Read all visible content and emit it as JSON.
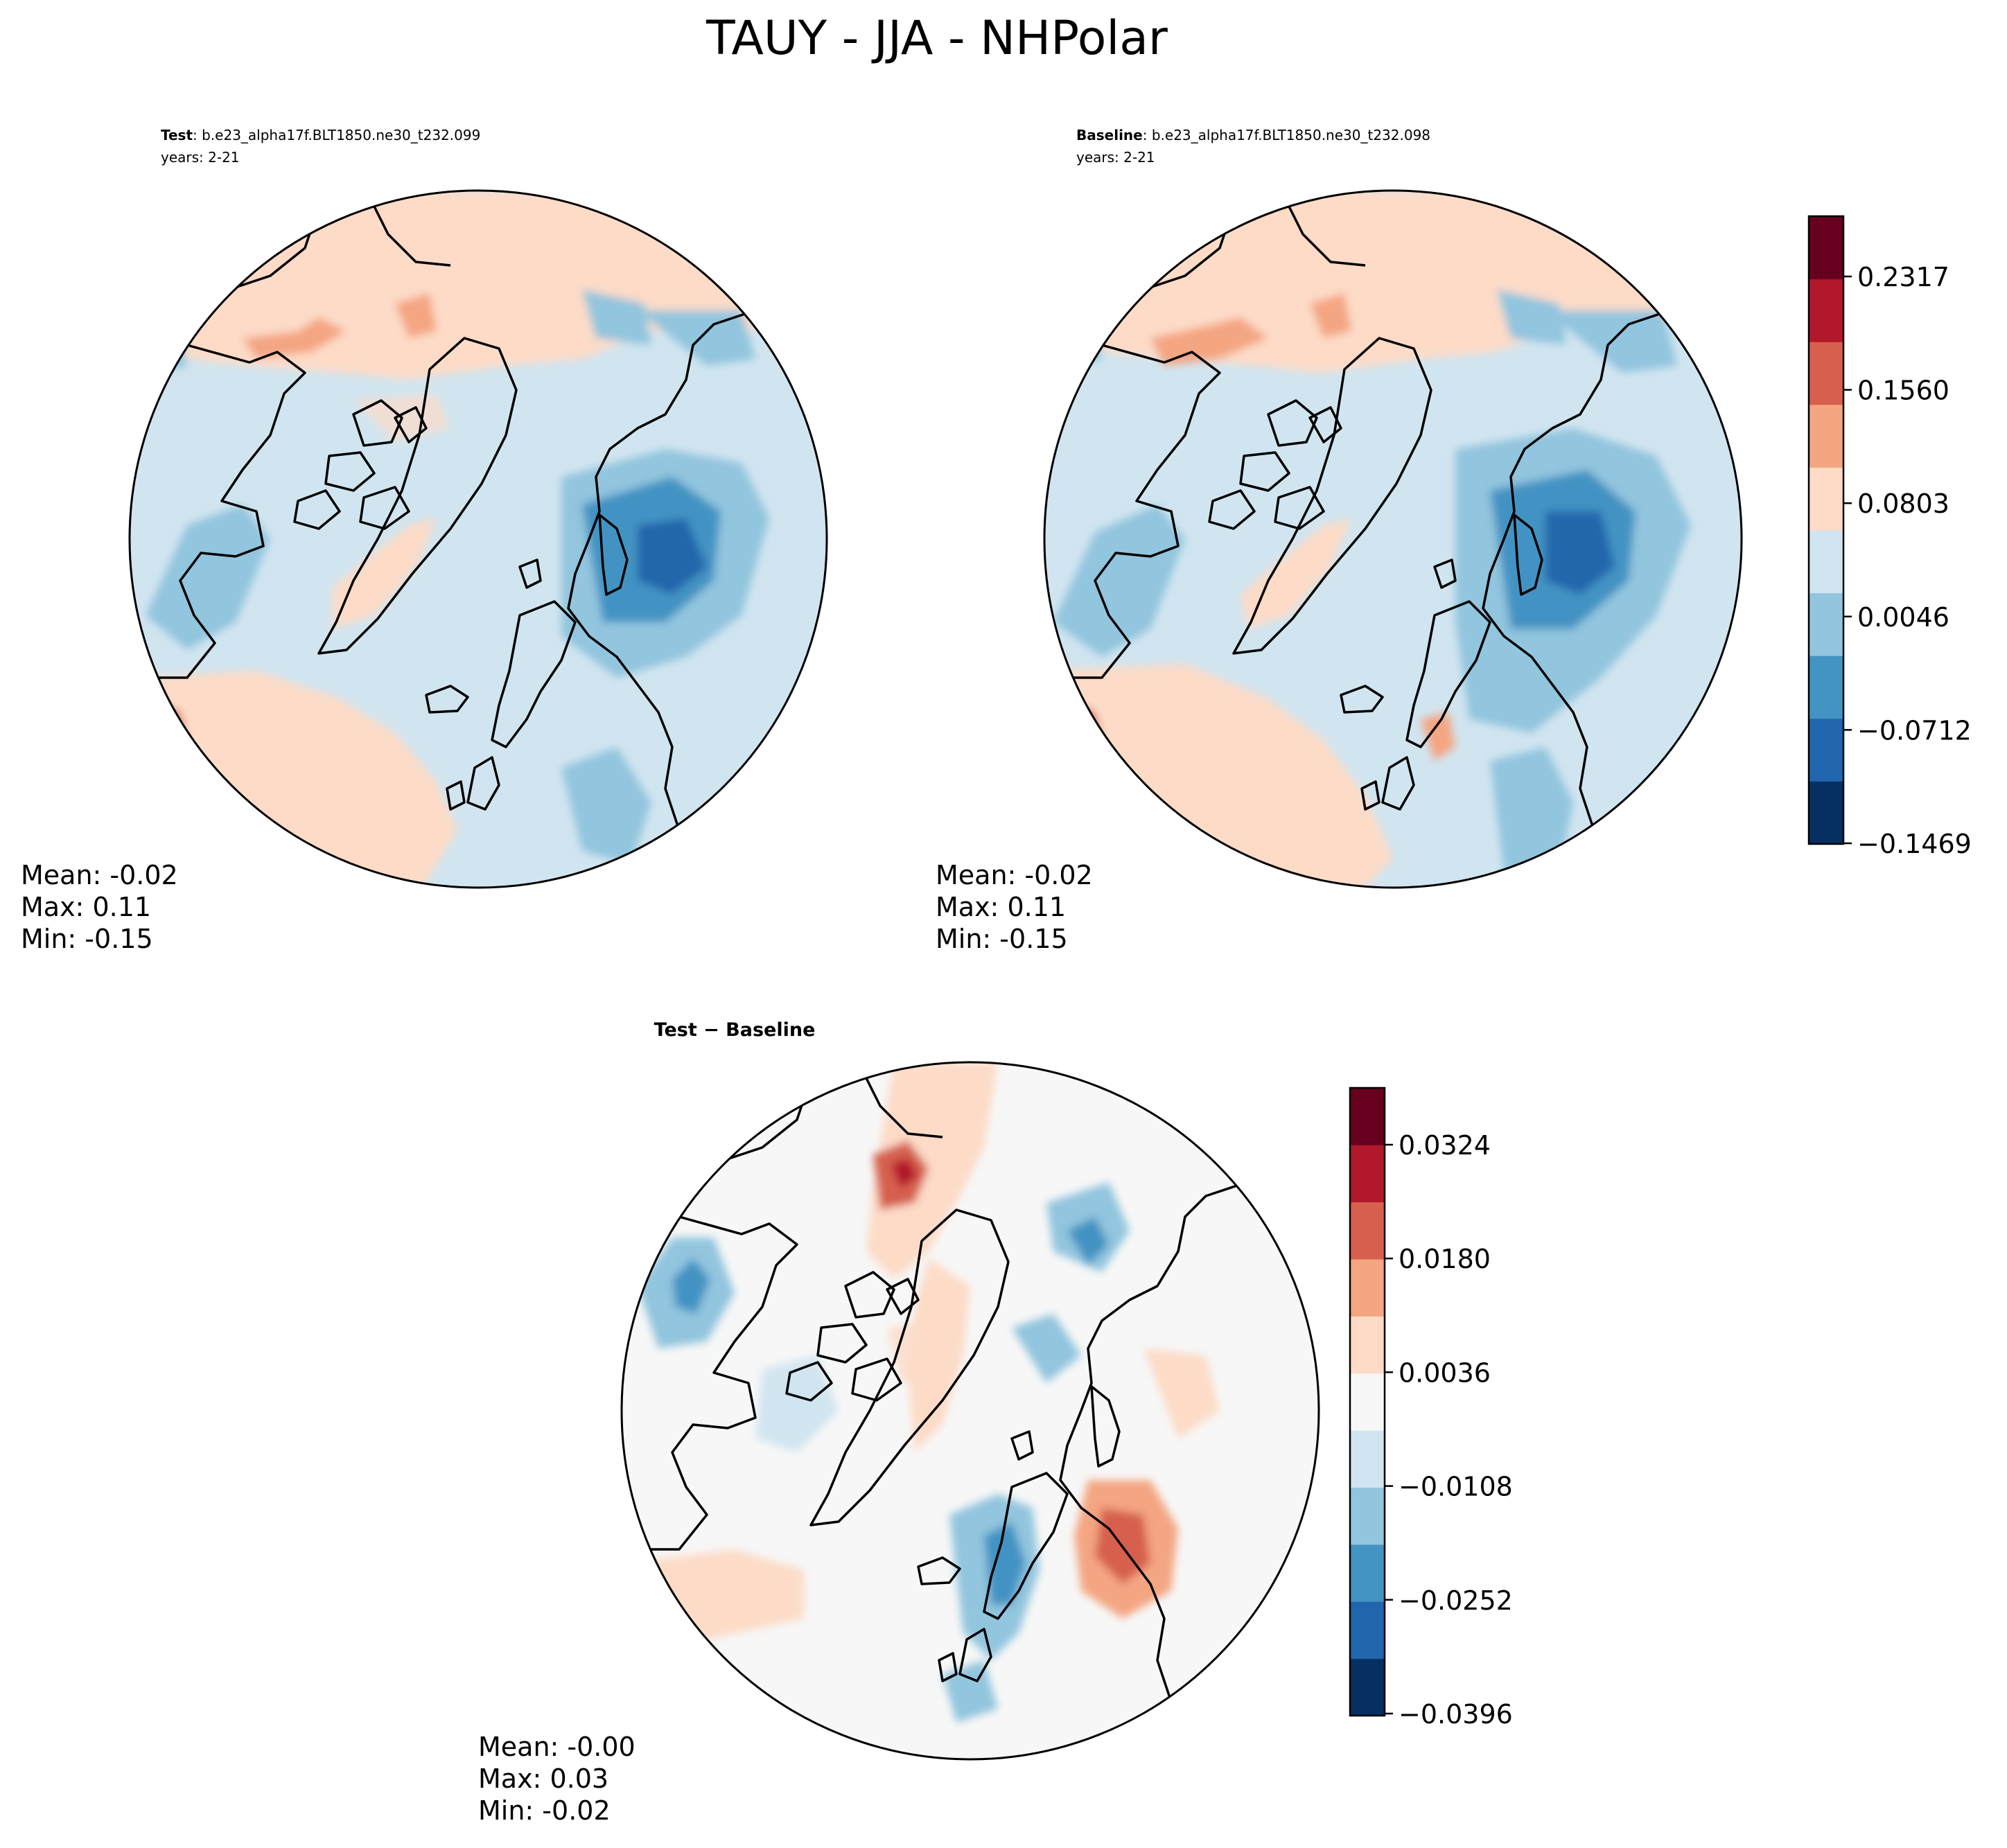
{
  "figure": {
    "title": "TAUY - JJA - NHPolar"
  },
  "chart_data": [
    {
      "type": "heatmap",
      "projection": "north-polar-stereographic",
      "panel": "test",
      "label_bold": "Test",
      "label_rest": ": b.e23_alpha17f.BLT1850.ne30_t232.099",
      "years": "years: 2-21",
      "stats": {
        "mean": "Mean: -0.02",
        "max": "Max:  0.11",
        "min": "Min: -0.15"
      },
      "features": [
        {
          "name": "north-atlantic-negative-core",
          "value": -0.14
        },
        {
          "name": "bering-positive",
          "value": 0.1
        },
        {
          "name": "north-pacific-positive",
          "value": 0.05
        },
        {
          "name": "greenland-positive-strip",
          "value": 0.05
        },
        {
          "name": "labrador-negative",
          "value": -0.05
        },
        {
          "name": "siberia-negative",
          "value": -0.07
        }
      ]
    },
    {
      "type": "heatmap",
      "projection": "north-polar-stereographic",
      "panel": "baseline",
      "label_bold": "Baseline",
      "label_rest": ": b.e23_alpha17f.BLT1850.ne30_t232.098",
      "years": "years: 2-21",
      "stats": {
        "mean": "Mean: -0.02",
        "max": "Max:  0.11",
        "min": "Min: -0.15"
      },
      "features": [
        {
          "name": "north-atlantic-negative-core",
          "value": -0.13
        },
        {
          "name": "bering-positive",
          "value": 0.09
        },
        {
          "name": "north-pacific-positive",
          "value": 0.05
        },
        {
          "name": "greenland-positive-strip",
          "value": 0.05
        },
        {
          "name": "labrador-negative",
          "value": -0.05
        },
        {
          "name": "siberia-negative",
          "value": -0.07
        }
      ],
      "colorbar": {
        "ticks": [
          "0.2317",
          "0.1560",
          "0.0803",
          "0.0046",
          "−0.0712",
          "−0.1469"
        ],
        "colors": [
          "#053061",
          "#2166ac",
          "#4393c3",
          "#92c5de",
          "#d1e5f0",
          "#fddbc7",
          "#f4a582",
          "#d6604d",
          "#b2182b",
          "#67001f"
        ]
      }
    },
    {
      "type": "heatmap",
      "projection": "north-polar-stereographic",
      "panel": "difference",
      "label_bold": "Test − Baseline",
      "stats": {
        "mean": "Mean: -0.00",
        "max": "Max:  0.03",
        "min": "Min: -0.02"
      },
      "features": [
        {
          "name": "bering-positive-core",
          "value": 0.035
        },
        {
          "name": "north-atlantic-positive",
          "value": 0.028
        },
        {
          "name": "scandinavia-negative",
          "value": -0.02
        },
        {
          "name": "siberia-negative",
          "value": -0.018
        },
        {
          "name": "canada-negative",
          "value": -0.02
        }
      ],
      "colorbar": {
        "ticks": [
          "0.0324",
          "0.0180",
          "0.0036",
          "−0.0108",
          "−0.0252",
          "−0.0396"
        ],
        "colors": [
          "#053061",
          "#2166ac",
          "#4393c3",
          "#92c5de",
          "#d1e5f0",
          "#f7f7f7",
          "#fddbc7",
          "#f4a582",
          "#d6604d",
          "#b2182b",
          "#67001f"
        ]
      }
    }
  ]
}
